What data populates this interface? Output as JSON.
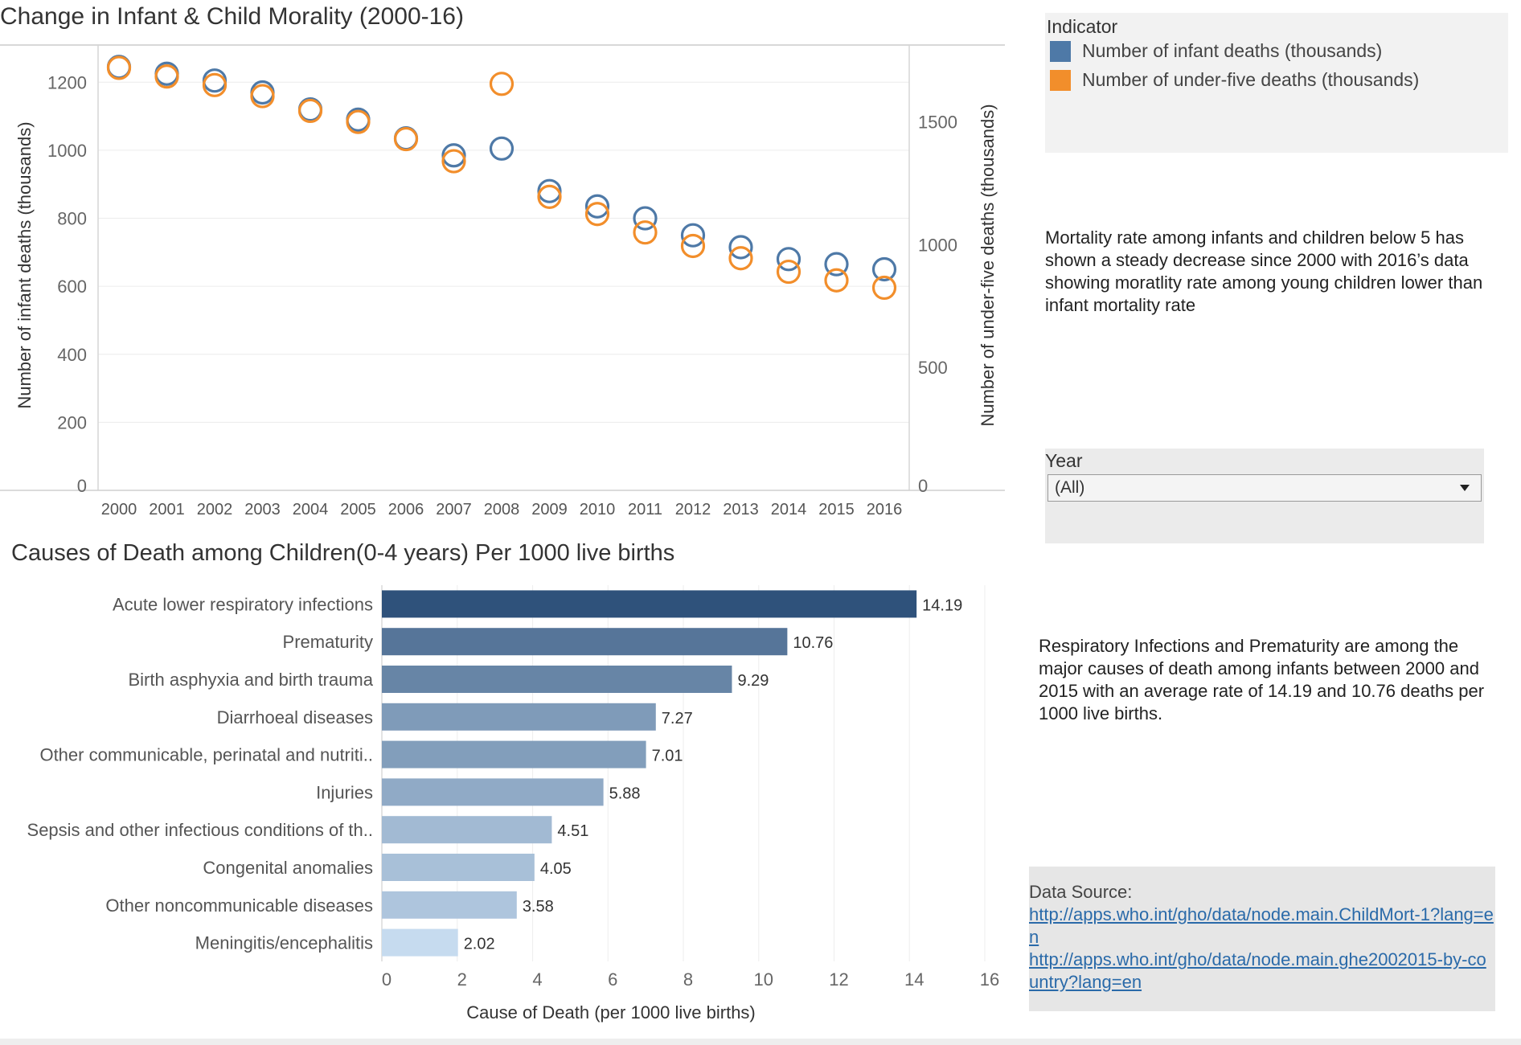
{
  "dashboard": {
    "top_title": "Change in Infant & Child Morality (2000-16)",
    "bottom_title": "Causes of Death among Children(0-4 years)  Per 1000 live births"
  },
  "legend": {
    "title": "Indicator",
    "items": [
      {
        "label": "Number of infant deaths (thousands)",
        "color": "#4e79a7"
      },
      {
        "label": "Number of under-five deaths (thousands)",
        "color": "#f28e2b"
      }
    ]
  },
  "notes": {
    "mortality": "Mortality rate among infants and children below 5 has shown a steady decrease since 2000 with 2016’s data showing moratlity rate among young children lower than infant mortality rate",
    "causes": "Respiratory Infections and Prematurity are among the major causes of death among infants between 2000 and 2015 with an average rate of 14.19 and 10.76 deaths per 1000 live births."
  },
  "year_filter": {
    "label": "Year",
    "value": "(All)"
  },
  "source": {
    "label": "Data Source:",
    "links": [
      "http://apps.who.int/gho/data/node.main.ChildMort-1?lang=en",
      "http://apps.who.int/gho/data/node.main.ghe2002015-by-country?lang=en"
    ]
  },
  "chart_data": [
    {
      "type": "scatter",
      "title": "Change in Infant & Child Morality (2000-16)",
      "xlabel": "",
      "ylabel": "Number of infant deaths (thousands)",
      "y2label": "Number of under-five deaths (thousands)",
      "categories": [
        "2000",
        "2001",
        "2002",
        "2003",
        "2004",
        "2005",
        "2006",
        "2007",
        "2008",
        "2009",
        "2010",
        "2011",
        "2012",
        "2013",
        "2014",
        "2015",
        "2016"
      ],
      "ylim": [
        0,
        1300
      ],
      "y2lim": [
        0,
        1800
      ],
      "yticks": [
        0,
        200,
        400,
        600,
        800,
        1000,
        1200
      ],
      "y2ticks": [
        0,
        500,
        1000,
        1500
      ],
      "grid": true,
      "marker": "hollow-circle",
      "series": [
        {
          "name": "Number of infant deaths (thousands)",
          "axis": "left",
          "color": "#4e79a7",
          "values": [
            1245,
            1225,
            1205,
            1170,
            1120,
            1090,
            1035,
            985,
            1005,
            880,
            835,
            800,
            750,
            715,
            680,
            665,
            650
          ]
        },
        {
          "name": "Number of under-five deaths (thousands)",
          "axis": "right",
          "color": "#f28e2b",
          "values": [
            1720,
            1685,
            1650,
            1605,
            1545,
            1500,
            1430,
            1340,
            1655,
            1195,
            1125,
            1050,
            995,
            945,
            890,
            855,
            825
          ]
        }
      ]
    },
    {
      "type": "bar",
      "orientation": "horizontal",
      "title": "Causes of Death among Children(0-4 years)  Per 1000 live births",
      "xlabel": "Cause of Death (per 1000 live births)",
      "ylabel": "",
      "xlim": [
        0,
        16
      ],
      "xticks": [
        0,
        2,
        4,
        6,
        8,
        10,
        12,
        14,
        16
      ],
      "grid": true,
      "categories": [
        "Acute lower respiratory infections",
        "Prematurity",
        "Birth asphyxia and birth trauma",
        "Diarrhoeal diseases",
        "Other communicable, perinatal and nutriti..",
        "Injuries",
        "Sepsis and other infectious conditions of th..",
        "Congenital anomalies",
        "Other noncommunicable diseases",
        "Meningitis/encephalitis"
      ],
      "values": [
        14.19,
        10.76,
        9.29,
        7.27,
        7.01,
        5.88,
        4.51,
        4.05,
        3.58,
        2.02
      ],
      "value_labels": [
        "14.19",
        "10.76",
        "9.29",
        "7.27",
        "7.01",
        "5.88",
        "4.51",
        "4.05",
        "3.58",
        "2.02"
      ],
      "color_scale": [
        "#c6dbef",
        "#2f527b"
      ]
    }
  ]
}
